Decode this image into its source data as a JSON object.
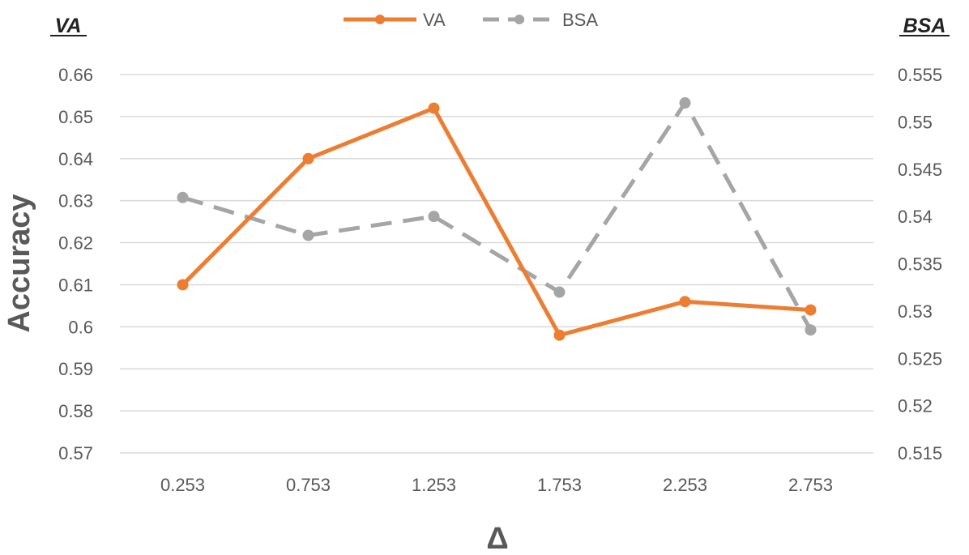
{
  "chart_data": {
    "type": "line",
    "x": [
      "0.253",
      "0.753",
      "1.253",
      "1.753",
      "2.253",
      "2.753"
    ],
    "xlabel": "Δ",
    "ylabel": "Accuracy",
    "left_axis_title": "VA",
    "right_axis_title": "BSA",
    "y_left": {
      "lim": [
        0.57,
        0.66
      ],
      "ticks": [
        "0.66",
        "0.65",
        "0.64",
        "0.63",
        "0.62",
        "0.61",
        "0.6",
        "0.59",
        "0.58",
        "0.57"
      ]
    },
    "y_right": {
      "lim": [
        0.515,
        0.555
      ],
      "ticks": [
        "0.555",
        "0.55",
        "0.545",
        "0.54",
        "0.535",
        "0.53",
        "0.525",
        "0.52",
        "0.515"
      ]
    },
    "grid": true,
    "legend": "top-center",
    "series": [
      {
        "name": "VA",
        "axis": "left",
        "color": "#ED7D31",
        "style": "solid",
        "values": [
          0.61,
          0.64,
          0.652,
          0.598,
          0.606,
          0.604
        ]
      },
      {
        "name": "BSA",
        "axis": "right",
        "color": "#A5A5A5",
        "style": "dashed",
        "values": [
          0.542,
          0.538,
          0.54,
          0.532,
          0.552,
          0.528
        ]
      }
    ]
  }
}
